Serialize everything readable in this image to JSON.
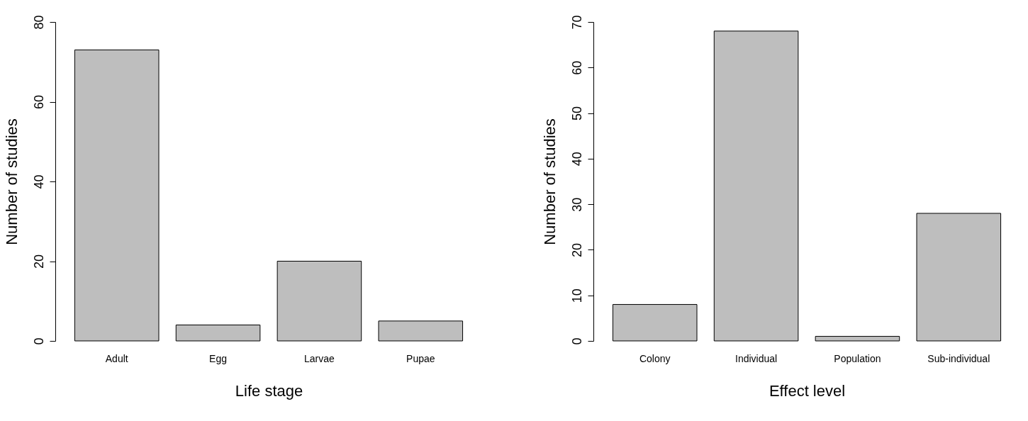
{
  "chart_data": [
    {
      "type": "bar",
      "xlabel": "Life stage",
      "ylabel": "Number of studies",
      "categories": [
        "Adult",
        "Egg",
        "Larvae",
        "Pupae"
      ],
      "values": [
        73,
        4,
        20,
        5
      ],
      "color": "#bebebe",
      "ylim": [
        0,
        80
      ],
      "yticks": [
        0,
        20,
        40,
        60,
        80
      ],
      "grid": false
    },
    {
      "type": "bar",
      "xlabel": "Effect level",
      "ylabel": "Number of studies",
      "categories": [
        "Colony",
        "Individual",
        "Population",
        "Sub-individual"
      ],
      "values": [
        8,
        68,
        1,
        28
      ],
      "color": "#bebebe",
      "ylim": [
        0,
        70
      ],
      "yticks": [
        0,
        10,
        20,
        30,
        40,
        50,
        60,
        70
      ],
      "grid": false
    }
  ]
}
